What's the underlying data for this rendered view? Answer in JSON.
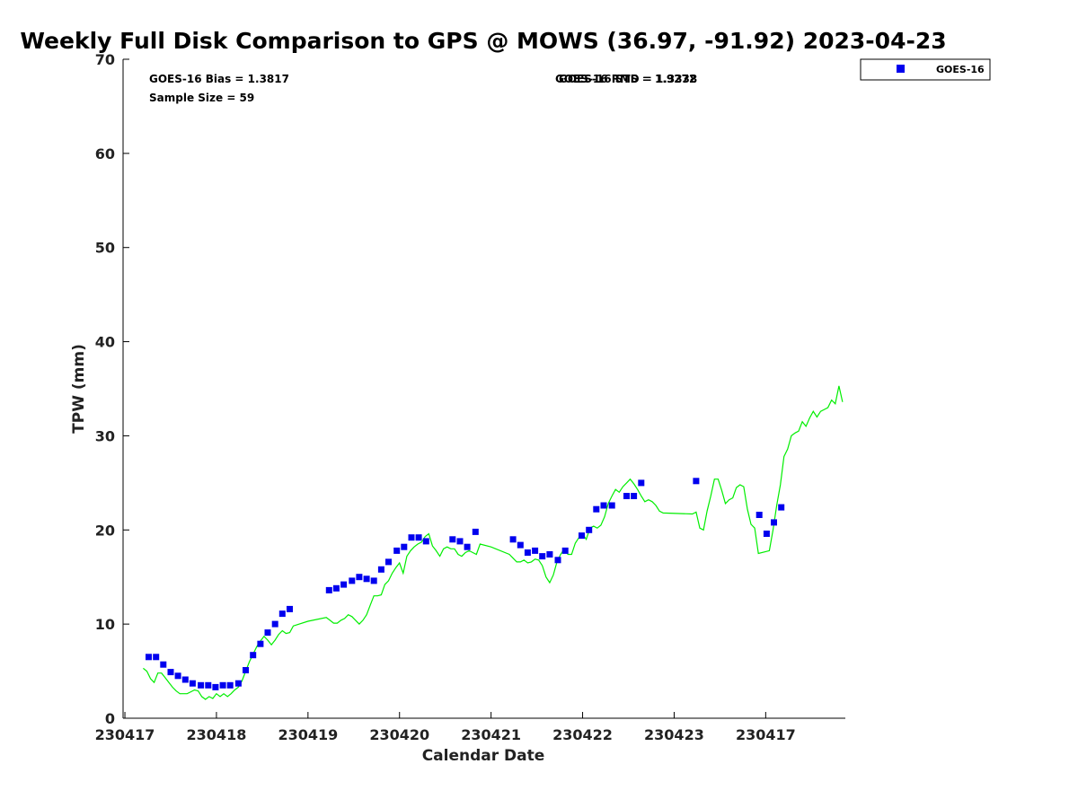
{
  "colors": {
    "goes": "#0000ee",
    "gps": "#00ee00",
    "axis": "#000000",
    "background": "#ffffff"
  },
  "chart_data": {
    "type": "scatter",
    "title": "Weekly Full Disk Comparison to GPS @ MOWS (36.97, -91.92) 2023-04-23",
    "xlabel": "Calendar Date",
    "ylabel": "TPW (mm)",
    "xlim": [
      -0.02,
      7.87
    ],
    "ylim": [
      0,
      70
    ],
    "x_unit": "days since first tick (230417)",
    "xticks": [
      {
        "x": 0,
        "label": "230417"
      },
      {
        "x": 1,
        "label": "230418"
      },
      {
        "x": 2,
        "label": "230419"
      },
      {
        "x": 3,
        "label": "230420"
      },
      {
        "x": 4,
        "label": "230421"
      },
      {
        "x": 5,
        "label": "230422"
      },
      {
        "x": 6,
        "label": "230423"
      },
      {
        "x": 7,
        "label": "230417"
      }
    ],
    "yticks": [
      0,
      10,
      20,
      30,
      40,
      50,
      60,
      70
    ],
    "grid": false,
    "legend": {
      "position": "top-right",
      "entries": [
        {
          "label": "GOES-16",
          "marker": "square",
          "color": "#0000ee"
        }
      ]
    },
    "annotations": {
      "bias": "GOES-16 Bias = 1.3817",
      "sample": "Sample Size = 59",
      "rms_a": "GOES-16 RMS = 1.9272",
      "rms_b": "GOES-16 STD = 1.3338"
    },
    "series": [
      {
        "name": "GOES-16",
        "kind": "scatter",
        "points": [
          [
            0.26,
            6.5
          ],
          [
            0.34,
            6.5
          ],
          [
            0.42,
            5.7
          ],
          [
            0.5,
            4.9
          ],
          [
            0.58,
            4.5
          ],
          [
            0.66,
            4.1
          ],
          [
            0.74,
            3.7
          ],
          [
            0.83,
            3.5
          ],
          [
            0.91,
            3.5
          ],
          [
            0.99,
            3.3
          ],
          [
            1.07,
            3.5
          ],
          [
            1.15,
            3.5
          ],
          [
            1.24,
            3.7
          ],
          [
            1.32,
            5.1
          ],
          [
            1.4,
            6.7
          ],
          [
            1.48,
            7.9
          ],
          [
            1.56,
            9.1
          ],
          [
            1.64,
            10.0
          ],
          [
            1.72,
            11.1
          ],
          [
            1.8,
            11.6
          ],
          [
            2.23,
            13.6
          ],
          [
            2.31,
            13.8
          ],
          [
            2.39,
            14.2
          ],
          [
            2.48,
            14.6
          ],
          [
            2.56,
            15.0
          ],
          [
            2.64,
            14.8
          ],
          [
            2.72,
            14.6
          ],
          [
            2.8,
            15.8
          ],
          [
            2.88,
            16.6
          ],
          [
            2.97,
            17.8
          ],
          [
            3.05,
            18.2
          ],
          [
            3.13,
            19.2
          ],
          [
            3.21,
            19.2
          ],
          [
            3.29,
            18.8
          ],
          [
            3.58,
            19.0
          ],
          [
            3.66,
            18.8
          ],
          [
            3.74,
            18.2
          ],
          [
            3.83,
            19.8
          ],
          [
            4.24,
            19.0
          ],
          [
            4.32,
            18.4
          ],
          [
            4.4,
            17.6
          ],
          [
            4.48,
            17.8
          ],
          [
            4.56,
            17.2
          ],
          [
            4.64,
            17.4
          ],
          [
            4.73,
            16.8
          ],
          [
            4.81,
            17.8
          ],
          [
            4.99,
            19.4
          ],
          [
            5.07,
            20.0
          ],
          [
            5.15,
            22.2
          ],
          [
            5.23,
            22.6
          ],
          [
            5.32,
            22.6
          ],
          [
            5.48,
            23.6
          ],
          [
            5.56,
            23.6
          ],
          [
            5.64,
            25.0
          ],
          [
            6.24,
            25.2
          ],
          [
            6.93,
            21.6
          ],
          [
            7.01,
            19.6
          ],
          [
            7.09,
            20.8
          ],
          [
            7.17,
            22.4
          ]
        ]
      },
      {
        "name": "GPS",
        "kind": "line",
        "points": [
          [
            0.2,
            5.3
          ],
          [
            0.24,
            5.0
          ],
          [
            0.28,
            4.2
          ],
          [
            0.32,
            3.8
          ],
          [
            0.36,
            4.8
          ],
          [
            0.4,
            4.8
          ],
          [
            0.44,
            4.3
          ],
          [
            0.48,
            3.8
          ],
          [
            0.52,
            3.3
          ],
          [
            0.56,
            2.9
          ],
          [
            0.6,
            2.6
          ],
          [
            0.64,
            2.6
          ],
          [
            0.68,
            2.6
          ],
          [
            0.72,
            2.8
          ],
          [
            0.76,
            3.0
          ],
          [
            0.8,
            2.9
          ],
          [
            0.84,
            2.3
          ],
          [
            0.88,
            2.0
          ],
          [
            0.92,
            2.3
          ],
          [
            0.96,
            2.1
          ],
          [
            1.0,
            2.6
          ],
          [
            1.04,
            2.3
          ],
          [
            1.08,
            2.6
          ],
          [
            1.12,
            2.3
          ],
          [
            1.16,
            2.6
          ],
          [
            1.2,
            3.0
          ],
          [
            1.24,
            3.3
          ],
          [
            1.28,
            4.0
          ],
          [
            1.32,
            5.0
          ],
          [
            1.36,
            6.0
          ],
          [
            1.4,
            6.8
          ],
          [
            1.44,
            7.6
          ],
          [
            1.48,
            8.2
          ],
          [
            1.52,
            8.7
          ],
          [
            1.56,
            8.3
          ],
          [
            1.6,
            7.8
          ],
          [
            1.64,
            8.3
          ],
          [
            1.68,
            8.9
          ],
          [
            1.72,
            9.3
          ],
          [
            1.76,
            9.0
          ],
          [
            1.8,
            9.1
          ],
          [
            1.84,
            9.8
          ],
          [
            2.0,
            10.3
          ],
          [
            2.2,
            10.7
          ],
          [
            2.24,
            10.4
          ],
          [
            2.28,
            10.1
          ],
          [
            2.32,
            10.1
          ],
          [
            2.36,
            10.4
          ],
          [
            2.4,
            10.6
          ],
          [
            2.44,
            11.0
          ],
          [
            2.48,
            10.8
          ],
          [
            2.52,
            10.4
          ],
          [
            2.56,
            10.0
          ],
          [
            2.6,
            10.4
          ],
          [
            2.64,
            11.0
          ],
          [
            2.68,
            12.0
          ],
          [
            2.72,
            13.0
          ],
          [
            2.76,
            13.0
          ],
          [
            2.8,
            13.1
          ],
          [
            2.84,
            14.2
          ],
          [
            2.88,
            14.6
          ],
          [
            2.92,
            15.4
          ],
          [
            2.96,
            16.0
          ],
          [
            3.0,
            16.5
          ],
          [
            3.04,
            15.4
          ],
          [
            3.08,
            17.2
          ],
          [
            3.12,
            17.8
          ],
          [
            3.16,
            18.2
          ],
          [
            3.2,
            18.5
          ],
          [
            3.24,
            18.7
          ],
          [
            3.28,
            19.3
          ],
          [
            3.32,
            19.6
          ],
          [
            3.36,
            18.3
          ],
          [
            3.4,
            17.8
          ],
          [
            3.44,
            17.2
          ],
          [
            3.48,
            18.0
          ],
          [
            3.52,
            18.2
          ],
          [
            3.56,
            18.0
          ],
          [
            3.6,
            18.0
          ],
          [
            3.64,
            17.4
          ],
          [
            3.68,
            17.2
          ],
          [
            3.72,
            17.6
          ],
          [
            3.76,
            17.8
          ],
          [
            3.8,
            17.6
          ],
          [
            3.84,
            17.4
          ],
          [
            3.88,
            18.5
          ],
          [
            4.0,
            18.2
          ],
          [
            4.2,
            17.4
          ],
          [
            4.24,
            17.0
          ],
          [
            4.28,
            16.6
          ],
          [
            4.32,
            16.6
          ],
          [
            4.36,
            16.8
          ],
          [
            4.4,
            16.5
          ],
          [
            4.44,
            16.6
          ],
          [
            4.48,
            16.9
          ],
          [
            4.52,
            16.8
          ],
          [
            4.56,
            16.2
          ],
          [
            4.6,
            15.0
          ],
          [
            4.64,
            14.4
          ],
          [
            4.68,
            15.2
          ],
          [
            4.72,
            16.6
          ],
          [
            4.76,
            17.4
          ],
          [
            4.8,
            18.0
          ],
          [
            4.84,
            17.4
          ],
          [
            4.88,
            17.4
          ],
          [
            4.92,
            18.6
          ],
          [
            4.96,
            19.2
          ],
          [
            5.0,
            19.6
          ],
          [
            5.04,
            19.0
          ],
          [
            5.08,
            20.2
          ],
          [
            5.12,
            20.4
          ],
          [
            5.16,
            20.2
          ],
          [
            5.2,
            20.5
          ],
          [
            5.24,
            21.4
          ],
          [
            5.28,
            22.8
          ],
          [
            5.32,
            23.6
          ],
          [
            5.36,
            24.3
          ],
          [
            5.4,
            24.0
          ],
          [
            5.44,
            24.6
          ],
          [
            5.48,
            25.0
          ],
          [
            5.52,
            25.4
          ],
          [
            5.56,
            24.9
          ],
          [
            5.6,
            24.3
          ],
          [
            5.64,
            23.6
          ],
          [
            5.68,
            23.0
          ],
          [
            5.72,
            23.2
          ],
          [
            5.76,
            23.0
          ],
          [
            5.8,
            22.6
          ],
          [
            5.84,
            22.0
          ],
          [
            5.88,
            21.8
          ],
          [
            6.2,
            21.7
          ],
          [
            6.24,
            21.9
          ],
          [
            6.28,
            20.2
          ],
          [
            6.32,
            20.0
          ],
          [
            6.36,
            22.0
          ],
          [
            6.4,
            23.6
          ],
          [
            6.44,
            25.4
          ],
          [
            6.48,
            25.4
          ],
          [
            6.52,
            24.2
          ],
          [
            6.56,
            22.8
          ],
          [
            6.6,
            23.2
          ],
          [
            6.64,
            23.4
          ],
          [
            6.68,
            24.5
          ],
          [
            6.72,
            24.8
          ],
          [
            6.76,
            24.6
          ],
          [
            6.8,
            22.2
          ],
          [
            6.84,
            20.6
          ],
          [
            6.88,
            20.2
          ],
          [
            6.92,
            17.5
          ],
          [
            7.04,
            17.8
          ],
          [
            7.08,
            20.0
          ],
          [
            7.12,
            22.6
          ],
          [
            7.16,
            24.8
          ],
          [
            7.2,
            27.8
          ],
          [
            7.24,
            28.6
          ],
          [
            7.28,
            30.0
          ],
          [
            7.32,
            30.3
          ],
          [
            7.36,
            30.5
          ],
          [
            7.4,
            31.5
          ],
          [
            7.44,
            31.0
          ],
          [
            7.48,
            31.9
          ],
          [
            7.52,
            32.6
          ],
          [
            7.56,
            32.0
          ],
          [
            7.6,
            32.6
          ],
          [
            7.64,
            32.8
          ],
          [
            7.68,
            33.0
          ],
          [
            7.72,
            33.8
          ],
          [
            7.76,
            33.4
          ],
          [
            7.8,
            35.3
          ],
          [
            7.84,
            33.6
          ]
        ]
      }
    ]
  }
}
